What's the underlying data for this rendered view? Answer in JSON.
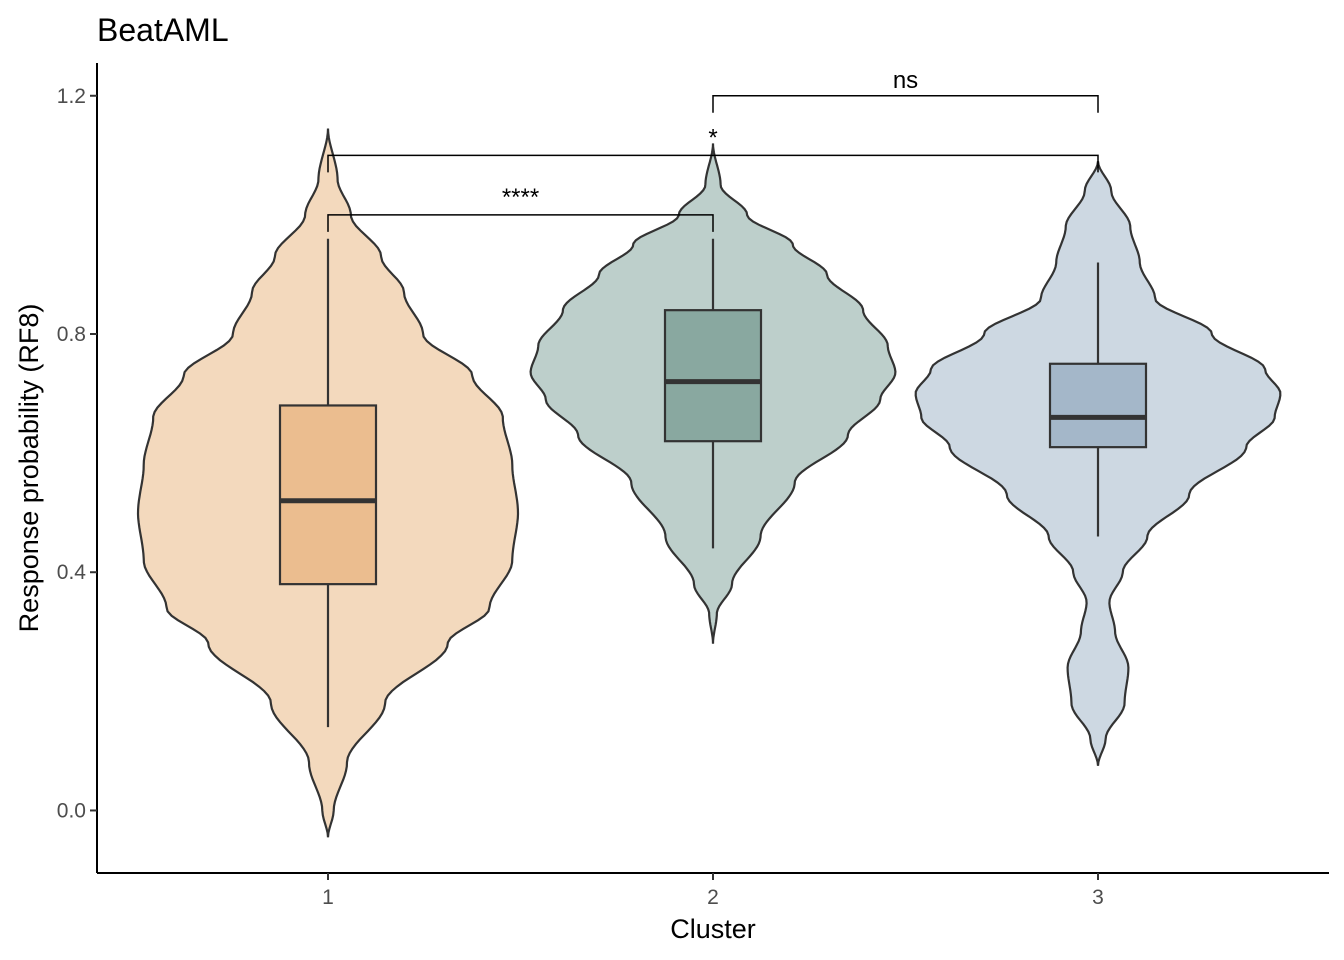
{
  "chart_data": {
    "type": "violin",
    "title": "BeatAML",
    "xlabel": "Cluster",
    "ylabel": "Response probability (RF8)",
    "categories": [
      "1",
      "2",
      "3"
    ],
    "ylim": [
      -0.105,
      1.255
    ],
    "yticks": [
      0.0,
      0.4,
      0.8,
      1.2
    ],
    "ytick_labels": [
      "0.0",
      "0.4",
      "0.8",
      "1.2"
    ],
    "grid": false,
    "legend": "none",
    "series": [
      {
        "category": "1",
        "violin_color": "#f3d9bd",
        "box_color": "#ebbd8f",
        "box": {
          "whisker_low": 0.14,
          "q1": 0.38,
          "median": 0.52,
          "q3": 0.68,
          "whisker_high": 0.96
        },
        "violin_range": [
          -0.045,
          1.145
        ],
        "density_profile": [
          [
            -0.045,
            0.0
          ],
          [
            0.0,
            0.03
          ],
          [
            0.08,
            0.1
          ],
          [
            0.18,
            0.3
          ],
          [
            0.28,
            0.63
          ],
          [
            0.34,
            0.85
          ],
          [
            0.42,
            0.97
          ],
          [
            0.5,
            1.0
          ],
          [
            0.58,
            0.97
          ],
          [
            0.66,
            0.92
          ],
          [
            0.73,
            0.76
          ],
          [
            0.8,
            0.5
          ],
          [
            0.87,
            0.4
          ],
          [
            0.93,
            0.28
          ],
          [
            1.0,
            0.12
          ],
          [
            1.06,
            0.05
          ],
          [
            1.145,
            0.0
          ]
        ]
      },
      {
        "category": "2",
        "violin_color": "#bdcfcb",
        "box_color": "#89a8a0",
        "box": {
          "whisker_low": 0.44,
          "q1": 0.62,
          "median": 0.72,
          "q3": 0.84,
          "whisker_high": 0.96
        },
        "violin_range": [
          0.28,
          1.12
        ],
        "density_profile": [
          [
            0.28,
            0.0
          ],
          [
            0.33,
            0.02
          ],
          [
            0.38,
            0.1
          ],
          [
            0.46,
            0.25
          ],
          [
            0.55,
            0.43
          ],
          [
            0.63,
            0.71
          ],
          [
            0.69,
            0.88
          ],
          [
            0.735,
            0.96
          ],
          [
            0.78,
            0.92
          ],
          [
            0.84,
            0.79
          ],
          [
            0.9,
            0.6
          ],
          [
            0.95,
            0.42
          ],
          [
            1.0,
            0.18
          ],
          [
            1.05,
            0.04
          ],
          [
            1.12,
            0.0
          ]
        ]
      },
      {
        "category": "3",
        "violin_color": "#cdd8e2",
        "box_color": "#a4b7c9",
        "box": {
          "whisker_low": 0.46,
          "q1": 0.61,
          "median": 0.66,
          "q3": 0.75,
          "whisker_high": 0.92
        },
        "violin_range": [
          0.075,
          1.09
        ],
        "density_profile": [
          [
            0.075,
            0.0
          ],
          [
            0.12,
            0.04
          ],
          [
            0.18,
            0.14
          ],
          [
            0.24,
            0.16
          ],
          [
            0.3,
            0.09
          ],
          [
            0.35,
            0.06
          ],
          [
            0.4,
            0.13
          ],
          [
            0.46,
            0.26
          ],
          [
            0.53,
            0.48
          ],
          [
            0.61,
            0.78
          ],
          [
            0.66,
            0.93
          ],
          [
            0.7,
            0.96
          ],
          [
            0.74,
            0.88
          ],
          [
            0.8,
            0.6
          ],
          [
            0.86,
            0.3
          ],
          [
            0.92,
            0.22
          ],
          [
            0.98,
            0.17
          ],
          [
            1.04,
            0.07
          ],
          [
            1.09,
            0.0
          ]
        ]
      }
    ],
    "comparisons": [
      {
        "groups": [
          "1",
          "2"
        ],
        "label": "****",
        "y": 1.0
      },
      {
        "groups": [
          "1",
          "3"
        ],
        "label": "*",
        "y": 1.1
      },
      {
        "groups": [
          "2",
          "3"
        ],
        "label": "ns",
        "y": 1.2
      }
    ]
  }
}
